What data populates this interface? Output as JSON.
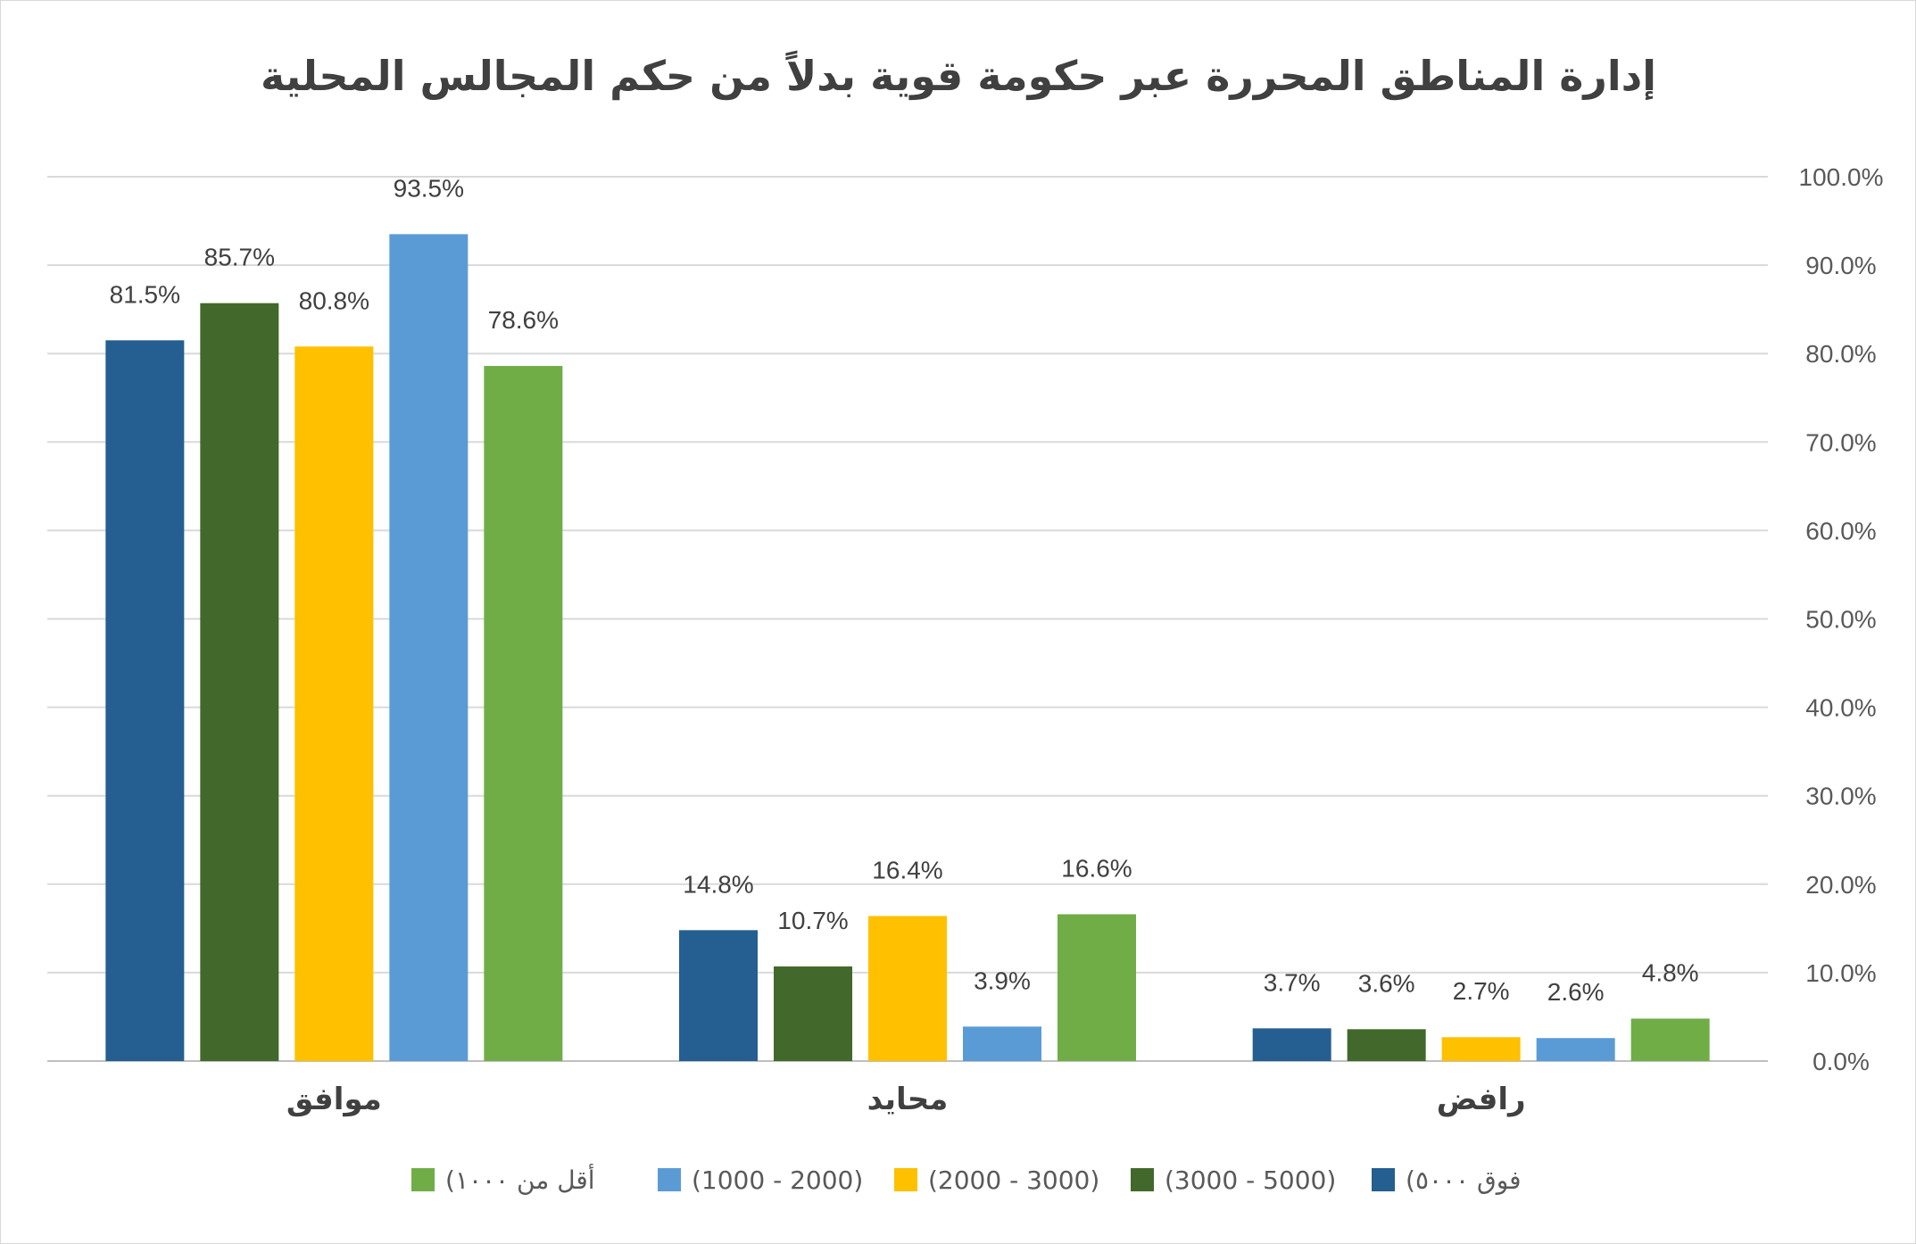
{
  "chart_data": {
    "type": "bar",
    "title": "إدارة المناطق المحررة عبر حكومة قوية بدلاً من حكم المجالس المحلية",
    "categories": [
      "موافق",
      "محايد",
      "رافض"
    ],
    "series": [
      {
        "name": "(فوق ٥٠٠٠",
        "color": "#255E91",
        "values": [
          81.5,
          14.8,
          3.7
        ]
      },
      {
        "name": "(3000 - 5000)",
        "color": "#43682B",
        "values": [
          85.7,
          10.7,
          3.6
        ]
      },
      {
        "name": "(2000 - 3000)",
        "color": "#FFC000",
        "values": [
          80.8,
          16.4,
          2.7
        ]
      },
      {
        "name": "(1000 - 2000)",
        "color": "#5B9BD5",
        "values": [
          93.5,
          3.9,
          2.6
        ]
      },
      {
        "name": "(أقل من ١٠٠٠",
        "color": "#70AD47",
        "values": [
          78.6,
          16.6,
          4.8
        ]
      }
    ],
    "ylim": [
      0,
      100
    ],
    "yticks": [
      "0.0%",
      "10.0%",
      "20.0%",
      "30.0%",
      "40.0%",
      "50.0%",
      "60.0%",
      "70.0%",
      "80.0%",
      "90.0%",
      "100.0%"
    ],
    "value_suffix": "%",
    "grid": true,
    "y_axis_side": "right",
    "legend_position": "bottom"
  }
}
